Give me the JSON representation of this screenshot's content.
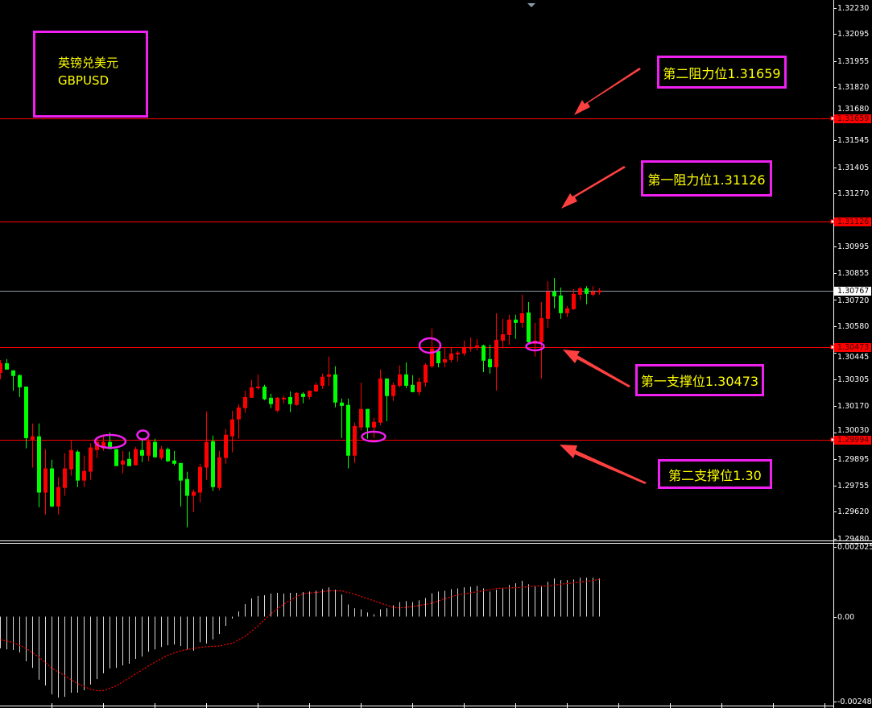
{
  "instrument": {
    "name_cn": "英镑兑美元",
    "symbol": "GBPUSD"
  },
  "annotations": {
    "resistance2": "第二阻力位1.31659",
    "resistance1": "第一阻力位1.31126",
    "support1": "第一支撑位1.30473",
    "support2": "第二支撑位1.30"
  },
  "colors": {
    "bull": "#ff0000",
    "bear": "#00ff00",
    "level_line": "#ff0000",
    "annotation_border": "#f020f0",
    "annotation_text": "#ffff00",
    "arrow": "#ff4040",
    "histogram": "#ffffff",
    "signal": "#ff0000",
    "bid_line": "#8a9aa8"
  },
  "chart_data": [
    {
      "type": "candlestick",
      "ylim": [
        1.2948,
        1.3223
      ],
      "grid": false,
      "y_ticks": [
        "1.32230",
        "1.32095",
        "1.31955",
        "1.31820",
        "1.31680",
        "1.31545",
        "1.31405",
        "1.31270",
        "1.30995",
        "1.30855",
        "1.30720",
        "1.30580",
        "1.30445",
        "1.30305",
        "1.30170",
        "1.30030",
        "1.29895",
        "1.29755",
        "1.29620",
        "1.29480"
      ],
      "price_tags": [
        {
          "value": "1.31659",
          "style": "level"
        },
        {
          "value": "1.31126",
          "style": "level"
        },
        {
          "value": "1.30767",
          "style": "bid"
        },
        {
          "value": "1.30473",
          "style": "level"
        },
        {
          "value": "1.29994",
          "style": "level"
        }
      ],
      "horizontal_levels": [
        1.31659,
        1.31126,
        1.30473,
        1.29994
      ],
      "bid": 1.30767,
      "ohlc_order": [
        "open",
        "high",
        "low",
        "close"
      ],
      "candles": [
        [
          1.3034,
          1.30407,
          1.30307,
          1.3039
        ],
        [
          1.3039,
          1.30411,
          1.30357,
          1.30357
        ],
        [
          1.30353,
          1.30353,
          1.30248,
          1.30324
        ],
        [
          1.30328,
          1.30332,
          1.30215,
          1.30265
        ],
        [
          1.30269,
          1.30269,
          1.29949,
          1.30002
        ],
        [
          1.29994,
          1.30078,
          1.29849,
          1.30011
        ],
        [
          1.30011,
          1.30078,
          1.29644,
          1.2972
        ],
        [
          1.2972,
          1.29945,
          1.29606,
          1.29845
        ],
        [
          1.29845,
          1.2989,
          1.29644,
          1.29648
        ],
        [
          1.29648,
          1.29798,
          1.29606,
          1.29748
        ],
        [
          1.29744,
          1.29924,
          1.29703,
          1.29845
        ],
        [
          1.2984,
          1.2999,
          1.29807,
          1.2994
        ],
        [
          1.29932,
          1.2994,
          1.29748,
          1.29782
        ],
        [
          1.29782,
          1.29911,
          1.29748,
          1.29832
        ],
        [
          1.29828,
          1.29974,
          1.29786,
          1.29953
        ],
        [
          1.2994,
          1.30011,
          1.29899,
          1.29982
        ],
        [
          1.29949,
          1.30011,
          1.29936,
          1.29982
        ],
        [
          1.29982,
          1.30032,
          1.29945,
          1.29945
        ],
        [
          1.29945,
          1.29945,
          1.29857,
          1.29857
        ],
        [
          1.29865,
          1.29936,
          1.29819,
          1.29886
        ],
        [
          1.29894,
          1.29932,
          1.29857,
          1.29857
        ],
        [
          1.29861,
          1.29957,
          1.29861,
          1.29945
        ],
        [
          1.2994,
          1.2999,
          1.29878,
          1.29911
        ],
        [
          1.29911,
          1.29999,
          1.29882,
          1.29986
        ],
        [
          1.29982,
          1.29999,
          1.29899,
          1.29903
        ],
        [
          1.29899,
          1.29961,
          1.2989,
          1.29945
        ],
        [
          1.29945,
          1.29953,
          1.29878,
          1.29882
        ],
        [
          1.29886,
          1.29936,
          1.29861,
          1.29869
        ],
        [
          1.29873,
          1.29873,
          1.29648,
          1.29782
        ],
        [
          1.2979,
          1.29828,
          1.2954,
          1.29703
        ],
        [
          1.29703,
          1.29736,
          1.29619,
          1.29724
        ],
        [
          1.2972,
          1.29869,
          1.29669,
          1.29853
        ],
        [
          1.29849,
          1.3014,
          1.29786,
          1.29982
        ],
        [
          1.29986,
          1.30015,
          1.29728,
          1.29748
        ],
        [
          1.29744,
          1.29936,
          1.29732,
          1.29903
        ],
        [
          1.29899,
          1.30049,
          1.29869,
          1.30019
        ],
        [
          1.30011,
          1.30144,
          1.29928,
          1.30099
        ],
        [
          1.30099,
          1.30178,
          1.29999,
          1.30161
        ],
        [
          1.30157,
          1.30248,
          1.30132,
          1.30215
        ],
        [
          1.30211,
          1.30303,
          1.30211,
          1.30265
        ],
        [
          1.30261,
          1.30332,
          1.30253,
          1.30269
        ],
        [
          1.30269,
          1.30278,
          1.30199,
          1.30203
        ],
        [
          1.30211,
          1.30232,
          1.30157,
          1.30178
        ],
        [
          1.30144,
          1.30215,
          1.30136,
          1.30211
        ],
        [
          1.30203,
          1.3022,
          1.30182,
          1.30211
        ],
        [
          1.30215,
          1.30244,
          1.30136,
          1.30178
        ],
        [
          1.30174,
          1.3024,
          1.30169,
          1.30236
        ],
        [
          1.30232,
          1.3024,
          1.30182,
          1.30215
        ],
        [
          1.30215,
          1.30248,
          1.30203,
          1.30248
        ],
        [
          1.30244,
          1.3029,
          1.3024,
          1.30278
        ],
        [
          1.30273,
          1.30336,
          1.30257,
          1.3032
        ],
        [
          1.3032,
          1.30424,
          1.30273,
          1.30332
        ],
        [
          1.30332,
          1.30374,
          1.30161,
          1.30186
        ],
        [
          1.30186,
          1.30207,
          1.30002,
          1.30169
        ],
        [
          1.30174,
          1.30207,
          1.29845,
          1.29911
        ],
        [
          1.29911,
          1.30082,
          1.29873,
          1.30065
        ],
        [
          1.30057,
          1.3029,
          1.3004,
          1.30153
        ],
        [
          1.30153,
          1.30153,
          1.29999,
          1.30057
        ],
        [
          1.30057,
          1.30107,
          1.30002,
          1.30086
        ],
        [
          1.30082,
          1.30357,
          1.30069,
          1.30311
        ],
        [
          1.30311,
          1.30311,
          1.3009,
          1.3022
        ],
        [
          1.3022,
          1.3029,
          1.30194,
          1.30278
        ],
        [
          1.30273,
          1.30378,
          1.30265,
          1.30332
        ],
        [
          1.30332,
          1.30394,
          1.30261,
          1.30273
        ],
        [
          1.30278,
          1.30328,
          1.3024,
          1.3024
        ],
        [
          1.3024,
          1.30315,
          1.30223,
          1.30294
        ],
        [
          1.3029,
          1.3039,
          1.30269,
          1.30382
        ],
        [
          1.30374,
          1.3057,
          1.30365,
          1.30466
        ],
        [
          1.30453,
          1.30461,
          1.30369,
          1.3039
        ],
        [
          1.30394,
          1.3047,
          1.30369,
          1.30411
        ],
        [
          1.30407,
          1.3047,
          1.30394,
          1.3044
        ],
        [
          1.30436,
          1.30453,
          1.30399,
          1.30445
        ],
        [
          1.3044,
          1.30507,
          1.30428,
          1.30474
        ],
        [
          1.30466,
          1.30524,
          1.30449,
          1.30474
        ],
        [
          1.30474,
          1.30516,
          1.30457,
          1.30482
        ],
        [
          1.30482,
          1.30486,
          1.30344,
          1.30403
        ],
        [
          1.30411,
          1.30486,
          1.30336,
          1.30369
        ],
        [
          1.30369,
          1.30649,
          1.30248,
          1.30511
        ],
        [
          1.30507,
          1.3062,
          1.30466,
          1.3054
        ],
        [
          1.30536,
          1.30641,
          1.30486,
          1.30616
        ],
        [
          1.30616,
          1.30641,
          1.30516,
          1.30599
        ],
        [
          1.30599,
          1.30745,
          1.30574,
          1.30649
        ],
        [
          1.30653,
          1.30707,
          1.30495,
          1.30499
        ],
        [
          1.30491,
          1.30599,
          1.30424,
          1.30507
        ],
        [
          1.30499,
          1.30707,
          1.30311,
          1.30624
        ],
        [
          1.3062,
          1.30815,
          1.30574,
          1.30761
        ],
        [
          1.30761,
          1.30832,
          1.30674,
          1.30736
        ],
        [
          1.30741,
          1.30782,
          1.3062,
          1.30649
        ],
        [
          1.30649,
          1.30686,
          1.30628,
          1.30674
        ],
        [
          1.3067,
          1.30774,
          1.30666,
          1.30749
        ],
        [
          1.30745,
          1.30786,
          1.30716,
          1.30778
        ],
        [
          1.30778,
          1.3079,
          1.30695,
          1.30749
        ],
        [
          1.30745,
          1.3079,
          1.30736,
          1.30761
        ],
        [
          1.30757,
          1.30778,
          1.30745,
          1.30767
        ]
      ]
    },
    {
      "type": "bar",
      "indicator_panel": true,
      "ylim": [
        -0.002489,
        0.002025
      ],
      "y_ticks": [
        "0.002025",
        "0.00",
        "-0.002489"
      ],
      "histogram": [
        -0.00093,
        -0.00096,
        -0.00098,
        -0.00105,
        -0.00131,
        -0.0015,
        -0.00185,
        -0.00202,
        -0.00228,
        -0.00237,
        -0.00235,
        -0.00223,
        -0.00223,
        -0.00216,
        -0.00199,
        -0.00183,
        -0.00166,
        -0.00152,
        -0.0015,
        -0.00143,
        -0.00138,
        -0.00124,
        -0.00117,
        -0.00103,
        -0.00096,
        -0.00089,
        -0.00084,
        -0.00082,
        -0.00086,
        -0.00096,
        -0.001,
        -0.00075,
        -0.00079,
        -0.00067,
        -0.00051,
        -0.00027,
        -6e-05,
        0.00015,
        0.00036,
        0.00053,
        0.0006,
        0.00062,
        0.00067,
        0.00069,
        0.00067,
        0.00069,
        0.00069,
        0.00071,
        0.00073,
        0.00075,
        0.0008,
        0.00085,
        0.00078,
        0.00064,
        0.00035,
        0.00024,
        0.00021,
        0.00012,
        7e-05,
        0.00021,
        0.00024,
        0.00033,
        0.00042,
        0.00045,
        0.00042,
        0.00047,
        0.00054,
        0.00068,
        0.00073,
        0.00075,
        0.0008,
        0.00082,
        0.00085,
        0.00087,
        0.00089,
        0.00082,
        0.00073,
        0.00078,
        0.00082,
        0.00092,
        0.00097,
        0.00104,
        0.00094,
        0.00087,
        0.00087,
        0.00101,
        0.00111,
        0.00106,
        0.00106,
        0.00108,
        0.00113,
        0.00113,
        0.00113,
        0.00111
      ],
      "signal_points": [
        [
          0,
          -0.00068
        ],
        [
          2,
          -0.00076
        ],
        [
          4,
          -0.00093
        ],
        [
          6,
          -0.00119
        ],
        [
          8,
          -0.00151
        ],
        [
          10,
          -0.00173
        ],
        [
          12,
          -0.00197
        ],
        [
          14,
          -0.00213
        ],
        [
          15,
          -0.00217
        ],
        [
          16,
          -0.00217
        ],
        [
          18,
          -0.00203
        ],
        [
          20,
          -0.0018
        ],
        [
          22,
          -0.00156
        ],
        [
          24,
          -0.00133
        ],
        [
          26,
          -0.00113
        ],
        [
          28,
          -0.001
        ],
        [
          30,
          -0.00093
        ],
        [
          32,
          -0.00088
        ],
        [
          34,
          -0.00086
        ],
        [
          36,
          -0.00078
        ],
        [
          38,
          -0.00058
        ],
        [
          40,
          -0.00027
        ],
        [
          42,
          9e-05
        ],
        [
          44,
          0.00036
        ],
        [
          46,
          0.00058
        ],
        [
          47,
          0.00067
        ],
        [
          49,
          0.0007
        ],
        [
          51,
          0.00075
        ],
        [
          53,
          0.00075
        ],
        [
          55,
          0.00065
        ],
        [
          57,
          0.00052
        ],
        [
          59,
          0.00039
        ],
        [
          61,
          0.00027
        ],
        [
          62,
          0.00025
        ],
        [
          63,
          0.00027
        ],
        [
          65,
          0.00032
        ],
        [
          67,
          0.00039
        ],
        [
          69,
          0.00052
        ],
        [
          71,
          0.00063
        ],
        [
          73,
          0.00069
        ],
        [
          75,
          0.00075
        ],
        [
          77,
          0.00082
        ],
        [
          79,
          0.00083
        ],
        [
          81,
          0.00085
        ],
        [
          83,
          0.00089
        ],
        [
          85,
          0.00089
        ],
        [
          87,
          0.00094
        ],
        [
          89,
          0.00098
        ],
        [
          91,
          0.00102
        ],
        [
          93,
          0.00108
        ]
      ]
    }
  ]
}
